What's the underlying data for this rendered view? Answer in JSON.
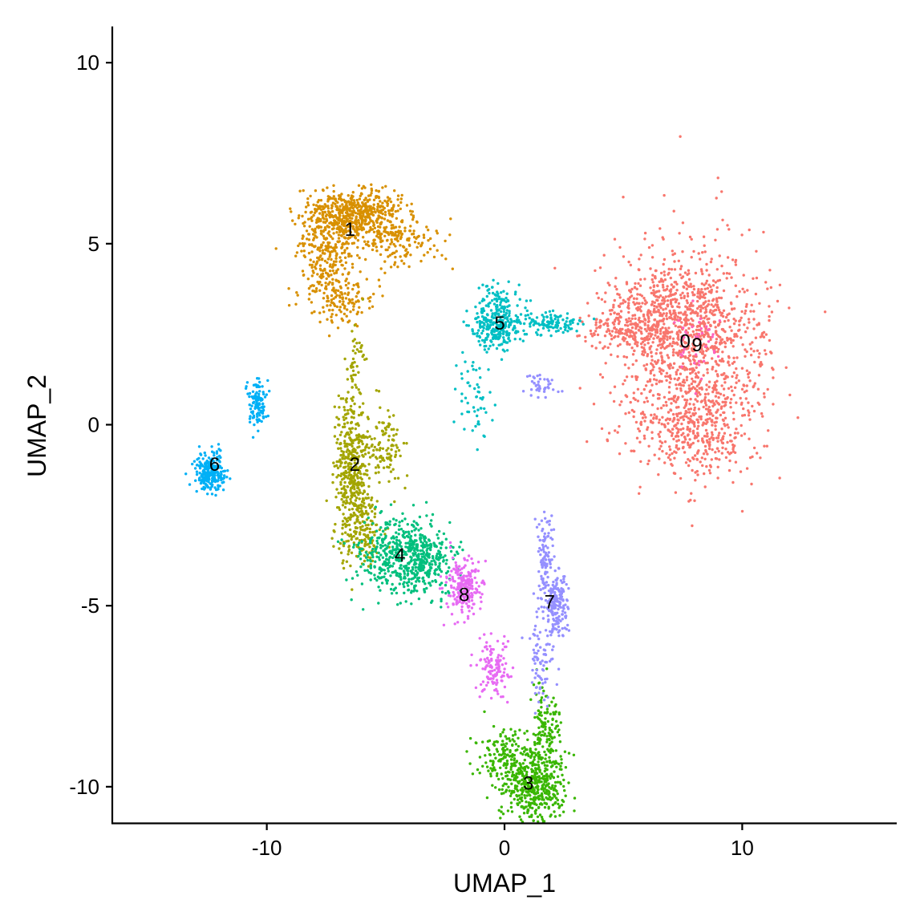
{
  "chart_data": {
    "type": "scatter",
    "xlabel": "UMAP_1",
    "ylabel": "UMAP_2",
    "xlim": [
      -16.5,
      16.5
    ],
    "ylim": [
      -11,
      11
    ],
    "x_ticks": [
      -10,
      0,
      10
    ],
    "x_tick_labels": [
      "-10",
      "0",
      "10"
    ],
    "y_ticks": [
      -10,
      -5,
      0,
      5,
      10
    ],
    "y_tick_labels": [
      "-10",
      "-5",
      "0",
      "5",
      "10"
    ],
    "grid": false,
    "legend": "none",
    "clusters": [
      {
        "label": "0",
        "color": "#F8766D",
        "label_pos": [
          7.6,
          2.3
        ],
        "blobs": [
          {
            "c": [
              7.8,
              2.0
            ],
            "s": [
              1.7,
              1.5
            ],
            "n": 1100
          },
          {
            "c": [
              6.6,
              3.2
            ],
            "s": [
              1.3,
              0.6
            ],
            "n": 350
          },
          {
            "c": [
              8.2,
              -0.2
            ],
            "s": [
              1.0,
              0.6
            ],
            "n": 250
          },
          {
            "c": [
              5.0,
              2.6
            ],
            "s": [
              0.9,
              0.25
            ],
            "n": 120
          }
        ]
      },
      {
        "label": "1",
        "color": "#D89000",
        "label_pos": [
          -6.5,
          5.4
        ],
        "blobs": [
          {
            "c": [
              -6.3,
              5.8
            ],
            "s": [
              1.0,
              0.35
            ],
            "n": 600
          },
          {
            "c": [
              -7.5,
              4.6
            ],
            "s": [
              0.6,
              0.6
            ],
            "n": 250
          },
          {
            "c": [
              -4.5,
              5.0
            ],
            "s": [
              0.8,
              0.35
            ],
            "n": 140
          },
          {
            "c": [
              -6.8,
              3.5
            ],
            "s": [
              0.7,
              0.35
            ],
            "n": 120
          }
        ]
      },
      {
        "label": "2",
        "color": "#A3A500",
        "label_pos": [
          -6.3,
          -1.1
        ],
        "blobs": [
          {
            "c": [
              -6.4,
              -1.2
            ],
            "s": [
              0.35,
              1.1
            ],
            "n": 450
          },
          {
            "c": [
              -5.9,
              -2.8
            ],
            "s": [
              0.45,
              0.5
            ],
            "n": 150
          },
          {
            "c": [
              -5.0,
              -0.6
            ],
            "s": [
              0.4,
              0.5
            ],
            "n": 100
          },
          {
            "c": [
              -6.2,
              1.8
            ],
            "s": [
              0.2,
              0.5
            ],
            "n": 40
          }
        ]
      },
      {
        "label": "3",
        "color": "#39B600",
        "label_pos": [
          1.0,
          -9.9
        ],
        "blobs": [
          {
            "c": [
              1.3,
              -10.0
            ],
            "s": [
              0.65,
              0.55
            ],
            "n": 450
          },
          {
            "c": [
              0.0,
              -9.2
            ],
            "s": [
              0.7,
              0.4
            ],
            "n": 150
          },
          {
            "c": [
              1.7,
              -8.3
            ],
            "s": [
              0.3,
              0.7
            ],
            "n": 130
          }
        ]
      },
      {
        "label": "4",
        "color": "#00BF7D",
        "label_pos": [
          -4.4,
          -3.6
        ],
        "blobs": [
          {
            "c": [
              -4.3,
              -3.6
            ],
            "s": [
              0.9,
              0.55
            ],
            "n": 500
          },
          {
            "c": [
              -3.0,
              -3.8
            ],
            "s": [
              0.5,
              0.5
            ],
            "n": 120
          }
        ]
      },
      {
        "label": "5",
        "color": "#00BFC4",
        "label_pos": [
          -0.2,
          2.8
        ],
        "blobs": [
          {
            "c": [
              -0.3,
              2.9
            ],
            "s": [
              0.5,
              0.45
            ],
            "n": 320
          },
          {
            "c": [
              1.8,
              2.8
            ],
            "s": [
              0.8,
              0.15
            ],
            "n": 120
          },
          {
            "c": [
              -1.2,
              1.0
            ],
            "s": [
              0.4,
              0.6
            ],
            "n": 60
          }
        ]
      },
      {
        "label": "6",
        "color": "#00B0F6",
        "label_pos": [
          -12.2,
          -1.1
        ],
        "blobs": [
          {
            "c": [
              -12.4,
              -1.3
            ],
            "s": [
              0.3,
              0.25
            ],
            "n": 250
          },
          {
            "c": [
              -10.4,
              0.6
            ],
            "s": [
              0.2,
              0.3
            ],
            "n": 110
          }
        ]
      },
      {
        "label": "7",
        "color": "#9590FF",
        "label_pos": [
          1.9,
          -4.9
        ],
        "blobs": [
          {
            "c": [
              2.2,
              -5.0
            ],
            "s": [
              0.25,
              0.45
            ],
            "n": 180
          },
          {
            "c": [
              1.7,
              -3.7
            ],
            "s": [
              0.18,
              0.6
            ],
            "n": 110
          },
          {
            "c": [
              1.5,
              -6.5
            ],
            "s": [
              0.3,
              0.6
            ],
            "n": 80
          },
          {
            "c": [
              1.5,
              1.1
            ],
            "s": [
              0.35,
              0.2
            ],
            "n": 40
          }
        ]
      },
      {
        "label": "8",
        "color": "#E76BF3",
        "label_pos": [
          -1.7,
          -4.7
        ],
        "blobs": [
          {
            "c": [
              -1.7,
              -4.5
            ],
            "s": [
              0.4,
              0.4
            ],
            "n": 220
          },
          {
            "c": [
              -0.4,
              -6.7
            ],
            "s": [
              0.35,
              0.4
            ],
            "n": 130
          }
        ]
      },
      {
        "label": "9",
        "color": "#FF62BC",
        "label_pos": [
          8.1,
          2.2
        ],
        "blobs": [
          {
            "c": [
              8.1,
              2.3
            ],
            "s": [
              0.5,
              0.5
            ],
            "n": 40
          }
        ]
      }
    ]
  }
}
